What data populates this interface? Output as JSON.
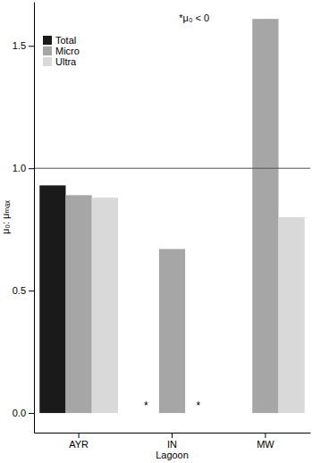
{
  "chart_data": {
    "type": "bar",
    "x_label": "Lagoon",
    "y_label": "μ₀: μₘₐₓ",
    "annotations": [
      "*μ₀ < 0"
    ],
    "categories": [
      "AYR",
      "IN",
      "MW"
    ],
    "series": [
      {
        "name": "Total",
        "color": "#1a1a1a",
        "values": [
          0.93,
          null,
          null
        ],
        "value_labels": [
          null,
          "*",
          null
        ]
      },
      {
        "name": "Micro",
        "color": "#a6a6a6",
        "values": [
          0.89,
          0.67,
          1.61
        ]
      },
      {
        "name": "Ultra",
        "color": "#d9d9d9",
        "values": [
          0.88,
          null,
          0.8
        ],
        "value_labels": [
          null,
          "*",
          null
        ]
      }
    ],
    "hlines": [
      1.0
    ],
    "ylim": [
      -0.08,
      1.68
    ],
    "yticks": [
      {
        "value": 0,
        "label": "0.0"
      },
      {
        "value": 0.5,
        "label": "0.5"
      },
      {
        "value": 1,
        "label": "1.0"
      },
      {
        "value": 1.5,
        "label": "1.5"
      }
    ],
    "legend": "top-left",
    "grid": false
  }
}
